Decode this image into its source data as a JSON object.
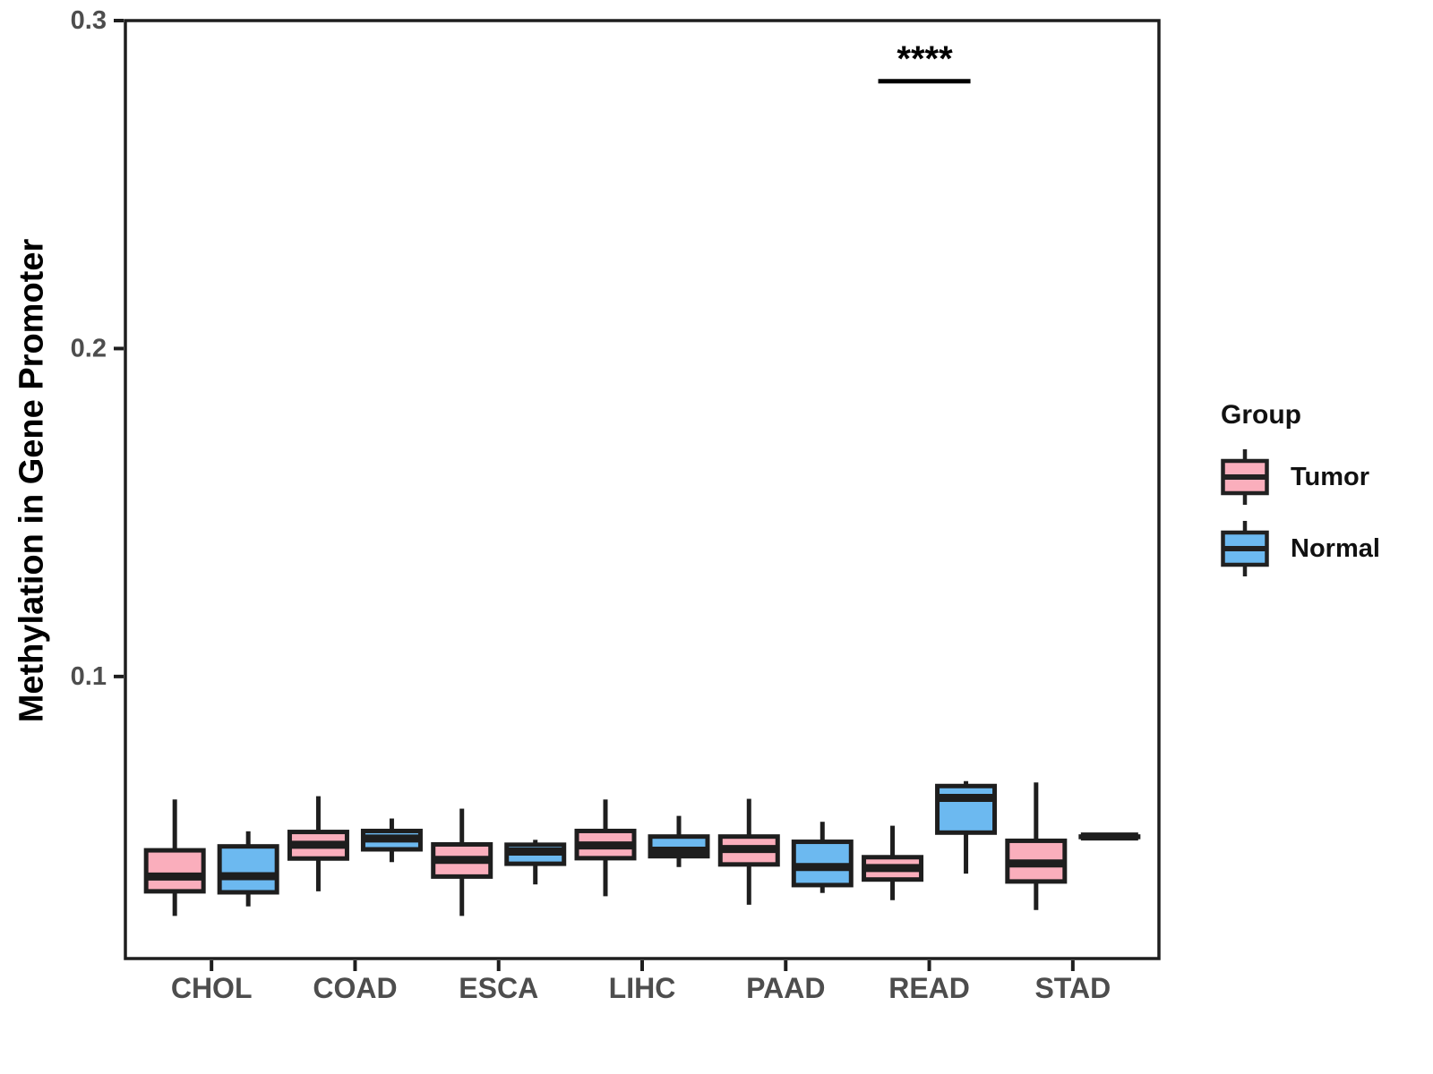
{
  "figure": {
    "ylabel": "Methylation in Gene Promoter"
  },
  "legend": {
    "title": "Group",
    "items": [
      {
        "label": "Tumor",
        "color": "#FAAEBC"
      },
      {
        "label": "Normal",
        "color": "#6CB9F0"
      }
    ]
  },
  "chart_data": {
    "type": "grouped_boxplot",
    "title": "",
    "xlabel": "",
    "ylabel": "Methylation in Gene Promoter",
    "categories": [
      "CHOL",
      "COAD",
      "ESCA",
      "LIHC",
      "PAAD",
      "READ",
      "STAD"
    ],
    "yticks": [
      0.1,
      0.2,
      0.3
    ],
    "ylim": [
      0.014,
      0.3
    ],
    "grid": false,
    "legend_position": "right",
    "axis_color": "#1e1e1e",
    "tick_label_color": "#4d4d4d",
    "series": [
      {
        "name": "Tumor",
        "color": "#FAAEBC",
        "stats": [
          {
            "min": 0.027,
            "q1": 0.0345,
            "med": 0.039,
            "q3": 0.047,
            "max": 0.0625
          },
          {
            "min": 0.0345,
            "q1": 0.0445,
            "med": 0.0487,
            "q3": 0.0526,
            "max": 0.0635
          },
          {
            "min": 0.027,
            "q1": 0.039,
            "med": 0.0441,
            "q3": 0.0488,
            "max": 0.0597
          },
          {
            "min": 0.033,
            "q1": 0.0446,
            "med": 0.0485,
            "q3": 0.0529,
            "max": 0.0625
          },
          {
            "min": 0.0304,
            "q1": 0.0427,
            "med": 0.0474,
            "q3": 0.0512,
            "max": 0.0627
          },
          {
            "min": 0.0318,
            "q1": 0.0381,
            "med": 0.0416,
            "q3": 0.0449,
            "max": 0.0545
          },
          {
            "min": 0.0288,
            "q1": 0.0375,
            "med": 0.043,
            "q3": 0.0499,
            "max": 0.0677
          }
        ]
      },
      {
        "name": "Normal",
        "color": "#6CB9F0",
        "stats": [
          {
            "min": 0.0299,
            "q1": 0.0342,
            "med": 0.0391,
            "q3": 0.0482,
            "max": 0.0528
          },
          {
            "min": 0.0434,
            "q1": 0.0473,
            "med": 0.0506,
            "q3": 0.0529,
            "max": 0.0567
          },
          {
            "min": 0.0366,
            "q1": 0.0429,
            "med": 0.0466,
            "q3": 0.0487,
            "max": 0.0502
          },
          {
            "min": 0.0419,
            "q1": 0.0452,
            "med": 0.0469,
            "q3": 0.0512,
            "max": 0.0575
          },
          {
            "min": 0.034,
            "q1": 0.0364,
            "med": 0.0419,
            "q3": 0.0496,
            "max": 0.0557
          },
          {
            "min": 0.0399,
            "q1": 0.0524,
            "med": 0.063,
            "q3": 0.0666,
            "max": 0.0681
          },
          {
            "min": 0.0512,
            "q1": 0.0512,
            "med": 0.0512,
            "q3": 0.0512,
            "max": 0.0512
          }
        ]
      }
    ],
    "annotation": {
      "label": "****",
      "category": "READ",
      "y": 0.2815
    }
  }
}
